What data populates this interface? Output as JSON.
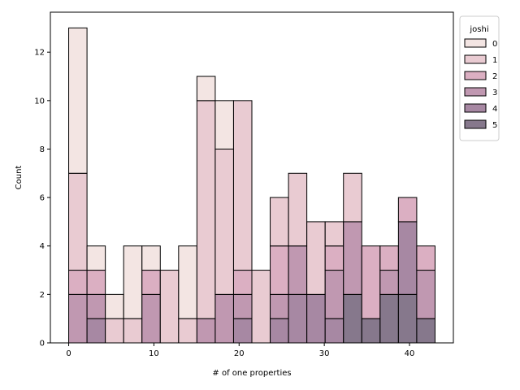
{
  "chart_data": {
    "type": "bar",
    "stacked": true,
    "xlabel": "# of one properties",
    "ylabel": "Count",
    "xlim": [
      -2.15,
      45.15
    ],
    "ylim": [
      0,
      13.65
    ],
    "x_ticks": [
      0,
      10,
      20,
      30,
      40
    ],
    "y_ticks": [
      0,
      2,
      4,
      6,
      8,
      10,
      12
    ],
    "bins": [
      [
        0.0,
        2.15
      ],
      [
        2.15,
        4.3
      ],
      [
        4.3,
        6.45
      ],
      [
        6.45,
        8.6
      ],
      [
        8.6,
        10.75
      ],
      [
        10.75,
        12.9
      ],
      [
        12.9,
        15.05
      ],
      [
        15.05,
        17.2
      ],
      [
        17.2,
        19.35
      ],
      [
        19.35,
        21.5
      ],
      [
        21.5,
        23.65
      ],
      [
        23.65,
        25.8
      ],
      [
        25.8,
        27.95
      ],
      [
        27.95,
        30.1
      ],
      [
        30.1,
        32.25
      ],
      [
        32.25,
        34.4
      ],
      [
        34.4,
        36.55
      ],
      [
        36.55,
        38.7
      ],
      [
        38.7,
        40.85
      ],
      [
        40.85,
        43.0
      ]
    ],
    "legend": {
      "title": "joshi",
      "placement": "upper right outside"
    },
    "series": [
      {
        "name": "0",
        "color": "#efdcd9",
        "values": [
          6,
          1,
          1,
          3,
          1,
          0,
          3,
          1,
          2,
          0,
          0,
          0,
          0,
          0,
          0,
          0,
          0,
          0,
          0,
          0
        ]
      },
      {
        "name": "1",
        "color": "#e2b9c3",
        "values": [
          4,
          0,
          1,
          1,
          0,
          3,
          1,
          9,
          6,
          7,
          3,
          2,
          3,
          3,
          1,
          2,
          0,
          0,
          0,
          0
        ]
      },
      {
        "name": "2",
        "color": "#cf94ae",
        "values": [
          1,
          1,
          0,
          0,
          1,
          0,
          0,
          0,
          0,
          1,
          0,
          2,
          0,
          0,
          1,
          0,
          3,
          1,
          1,
          1
        ]
      },
      {
        "name": "3",
        "color": "#ab7597",
        "values": [
          2,
          1,
          0,
          0,
          2,
          0,
          0,
          1,
          2,
          1,
          0,
          1,
          2,
          0,
          2,
          3,
          0,
          1,
          0,
          2
        ]
      },
      {
        "name": "4",
        "color": "#8a6084",
        "values": [
          0,
          1,
          0,
          0,
          0,
          0,
          0,
          0,
          0,
          1,
          0,
          1,
          2,
          2,
          1,
          0,
          0,
          0,
          3,
          0
        ]
      },
      {
        "name": "5",
        "color": "#5e4b66",
        "values": [
          0,
          0,
          0,
          0,
          0,
          0,
          0,
          0,
          0,
          0,
          0,
          0,
          0,
          0,
          0,
          2,
          1,
          2,
          2,
          1
        ]
      }
    ]
  }
}
